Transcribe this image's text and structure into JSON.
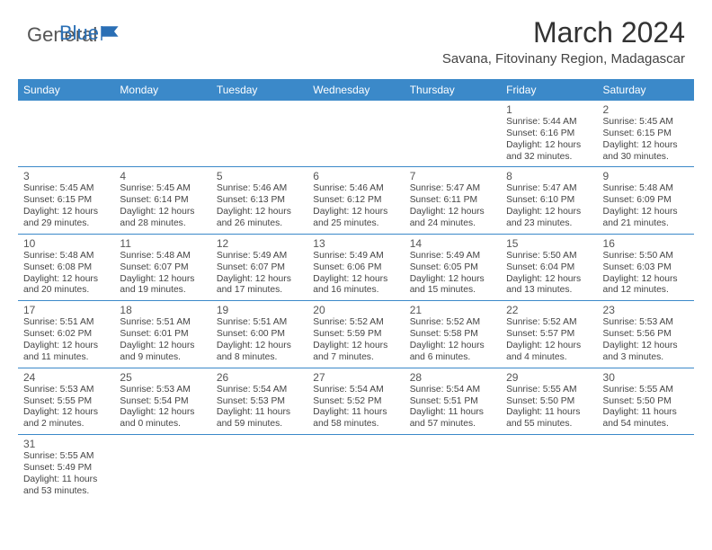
{
  "brand": {
    "general": "General",
    "blue": "Blue"
  },
  "title": "March 2024",
  "location": "Savana, Fitovinany Region, Madagascar",
  "header_color": "#3b89c9",
  "days_of_week": [
    "Sunday",
    "Monday",
    "Tuesday",
    "Wednesday",
    "Thursday",
    "Friday",
    "Saturday"
  ],
  "rows": [
    [
      null,
      null,
      null,
      null,
      null,
      {
        "n": "1",
        "sr": "Sunrise: 5:44 AM",
        "ss": "Sunset: 6:16 PM",
        "dl1": "Daylight: 12 hours",
        "dl2": "and 32 minutes."
      },
      {
        "n": "2",
        "sr": "Sunrise: 5:45 AM",
        "ss": "Sunset: 6:15 PM",
        "dl1": "Daylight: 12 hours",
        "dl2": "and 30 minutes."
      }
    ],
    [
      {
        "n": "3",
        "sr": "Sunrise: 5:45 AM",
        "ss": "Sunset: 6:15 PM",
        "dl1": "Daylight: 12 hours",
        "dl2": "and 29 minutes."
      },
      {
        "n": "4",
        "sr": "Sunrise: 5:45 AM",
        "ss": "Sunset: 6:14 PM",
        "dl1": "Daylight: 12 hours",
        "dl2": "and 28 minutes."
      },
      {
        "n": "5",
        "sr": "Sunrise: 5:46 AM",
        "ss": "Sunset: 6:13 PM",
        "dl1": "Daylight: 12 hours",
        "dl2": "and 26 minutes."
      },
      {
        "n": "6",
        "sr": "Sunrise: 5:46 AM",
        "ss": "Sunset: 6:12 PM",
        "dl1": "Daylight: 12 hours",
        "dl2": "and 25 minutes."
      },
      {
        "n": "7",
        "sr": "Sunrise: 5:47 AM",
        "ss": "Sunset: 6:11 PM",
        "dl1": "Daylight: 12 hours",
        "dl2": "and 24 minutes."
      },
      {
        "n": "8",
        "sr": "Sunrise: 5:47 AM",
        "ss": "Sunset: 6:10 PM",
        "dl1": "Daylight: 12 hours",
        "dl2": "and 23 minutes."
      },
      {
        "n": "9",
        "sr": "Sunrise: 5:48 AM",
        "ss": "Sunset: 6:09 PM",
        "dl1": "Daylight: 12 hours",
        "dl2": "and 21 minutes."
      }
    ],
    [
      {
        "n": "10",
        "sr": "Sunrise: 5:48 AM",
        "ss": "Sunset: 6:08 PM",
        "dl1": "Daylight: 12 hours",
        "dl2": "and 20 minutes."
      },
      {
        "n": "11",
        "sr": "Sunrise: 5:48 AM",
        "ss": "Sunset: 6:07 PM",
        "dl1": "Daylight: 12 hours",
        "dl2": "and 19 minutes."
      },
      {
        "n": "12",
        "sr": "Sunrise: 5:49 AM",
        "ss": "Sunset: 6:07 PM",
        "dl1": "Daylight: 12 hours",
        "dl2": "and 17 minutes."
      },
      {
        "n": "13",
        "sr": "Sunrise: 5:49 AM",
        "ss": "Sunset: 6:06 PM",
        "dl1": "Daylight: 12 hours",
        "dl2": "and 16 minutes."
      },
      {
        "n": "14",
        "sr": "Sunrise: 5:49 AM",
        "ss": "Sunset: 6:05 PM",
        "dl1": "Daylight: 12 hours",
        "dl2": "and 15 minutes."
      },
      {
        "n": "15",
        "sr": "Sunrise: 5:50 AM",
        "ss": "Sunset: 6:04 PM",
        "dl1": "Daylight: 12 hours",
        "dl2": "and 13 minutes."
      },
      {
        "n": "16",
        "sr": "Sunrise: 5:50 AM",
        "ss": "Sunset: 6:03 PM",
        "dl1": "Daylight: 12 hours",
        "dl2": "and 12 minutes."
      }
    ],
    [
      {
        "n": "17",
        "sr": "Sunrise: 5:51 AM",
        "ss": "Sunset: 6:02 PM",
        "dl1": "Daylight: 12 hours",
        "dl2": "and 11 minutes."
      },
      {
        "n": "18",
        "sr": "Sunrise: 5:51 AM",
        "ss": "Sunset: 6:01 PM",
        "dl1": "Daylight: 12 hours",
        "dl2": "and 9 minutes."
      },
      {
        "n": "19",
        "sr": "Sunrise: 5:51 AM",
        "ss": "Sunset: 6:00 PM",
        "dl1": "Daylight: 12 hours",
        "dl2": "and 8 minutes."
      },
      {
        "n": "20",
        "sr": "Sunrise: 5:52 AM",
        "ss": "Sunset: 5:59 PM",
        "dl1": "Daylight: 12 hours",
        "dl2": "and 7 minutes."
      },
      {
        "n": "21",
        "sr": "Sunrise: 5:52 AM",
        "ss": "Sunset: 5:58 PM",
        "dl1": "Daylight: 12 hours",
        "dl2": "and 6 minutes."
      },
      {
        "n": "22",
        "sr": "Sunrise: 5:52 AM",
        "ss": "Sunset: 5:57 PM",
        "dl1": "Daylight: 12 hours",
        "dl2": "and 4 minutes."
      },
      {
        "n": "23",
        "sr": "Sunrise: 5:53 AM",
        "ss": "Sunset: 5:56 PM",
        "dl1": "Daylight: 12 hours",
        "dl2": "and 3 minutes."
      }
    ],
    [
      {
        "n": "24",
        "sr": "Sunrise: 5:53 AM",
        "ss": "Sunset: 5:55 PM",
        "dl1": "Daylight: 12 hours",
        "dl2": "and 2 minutes."
      },
      {
        "n": "25",
        "sr": "Sunrise: 5:53 AM",
        "ss": "Sunset: 5:54 PM",
        "dl1": "Daylight: 12 hours",
        "dl2": "and 0 minutes."
      },
      {
        "n": "26",
        "sr": "Sunrise: 5:54 AM",
        "ss": "Sunset: 5:53 PM",
        "dl1": "Daylight: 11 hours",
        "dl2": "and 59 minutes."
      },
      {
        "n": "27",
        "sr": "Sunrise: 5:54 AM",
        "ss": "Sunset: 5:52 PM",
        "dl1": "Daylight: 11 hours",
        "dl2": "and 58 minutes."
      },
      {
        "n": "28",
        "sr": "Sunrise: 5:54 AM",
        "ss": "Sunset: 5:51 PM",
        "dl1": "Daylight: 11 hours",
        "dl2": "and 57 minutes."
      },
      {
        "n": "29",
        "sr": "Sunrise: 5:55 AM",
        "ss": "Sunset: 5:50 PM",
        "dl1": "Daylight: 11 hours",
        "dl2": "and 55 minutes."
      },
      {
        "n": "30",
        "sr": "Sunrise: 5:55 AM",
        "ss": "Sunset: 5:50 PM",
        "dl1": "Daylight: 11 hours",
        "dl2": "and 54 minutes."
      }
    ],
    [
      {
        "n": "31",
        "sr": "Sunrise: 5:55 AM",
        "ss": "Sunset: 5:49 PM",
        "dl1": "Daylight: 11 hours",
        "dl2": "and 53 minutes."
      },
      null,
      null,
      null,
      null,
      null,
      null
    ]
  ]
}
